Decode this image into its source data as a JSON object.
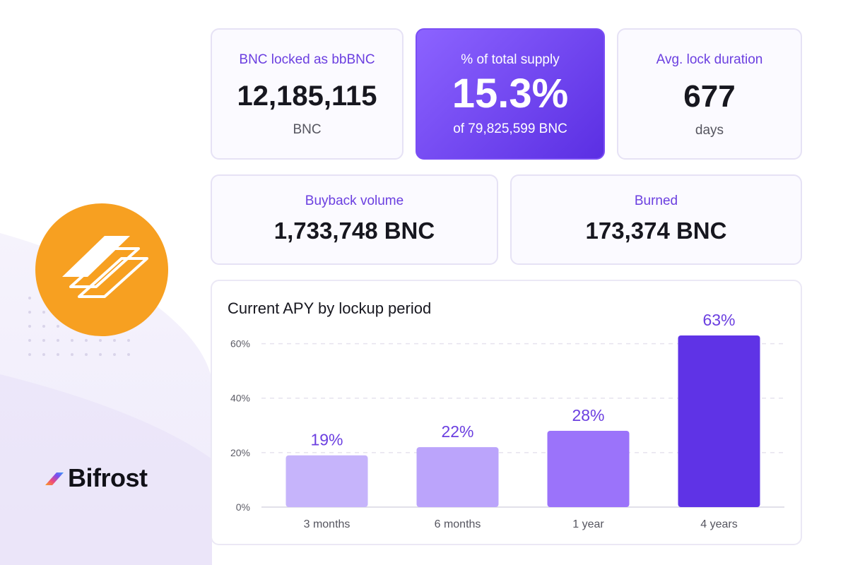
{
  "brand": {
    "name": "Bifrost"
  },
  "stats": {
    "locked": {
      "label": "BNC locked as bbBNC",
      "value": "12,185,115",
      "unit": "BNC"
    },
    "supply": {
      "label": "% of total supply",
      "value": "15.3%",
      "sub": "of 79,825,599 BNC"
    },
    "duration": {
      "label": "Avg. lock duration",
      "value": "677",
      "unit": "days"
    },
    "buyback": {
      "label": "Buyback volume",
      "value": "1,733,748 BNC"
    },
    "burned": {
      "label": "Burned",
      "value": "173,374 BNC"
    }
  },
  "colors": {
    "accent": "#6b3fe0",
    "logo_orange": "#f7a021",
    "bar_colors": [
      "#c6b4fb",
      "#bba4fb",
      "#9b73fa",
      "#5f33e6"
    ]
  },
  "chart_data": {
    "type": "bar",
    "title": "Current APY by lockup period",
    "categories": [
      "3 months",
      "6 months",
      "1 year",
      "4 years"
    ],
    "values": [
      19,
      22,
      28,
      63
    ],
    "value_labels": [
      "19%",
      "22%",
      "28%",
      "63%"
    ],
    "ylim": [
      0,
      70
    ],
    "yticks": [
      0,
      20,
      40,
      60
    ],
    "ytick_labels": [
      "0%",
      "20%",
      "40%",
      "60%"
    ],
    "grid": true,
    "xlabel": "",
    "ylabel": ""
  }
}
